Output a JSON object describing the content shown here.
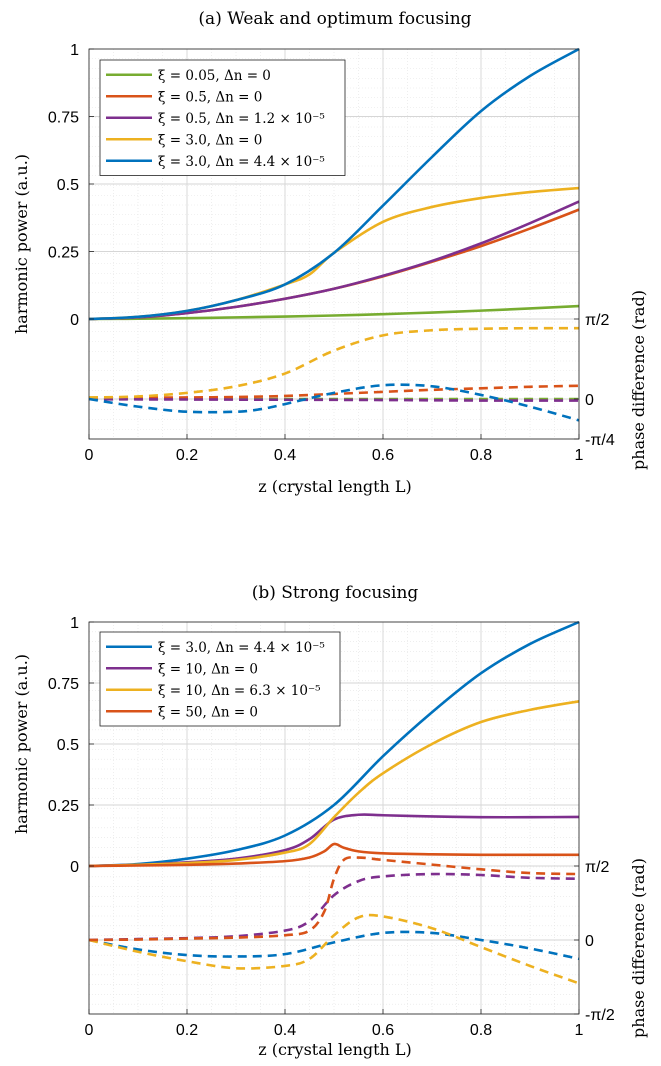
{
  "chart_data": [
    {
      "type": "line",
      "title": "(a) Weak and optimum focusing",
      "xlabel": "z (crystal length L)",
      "ylabel": "harmonic power (a.u.)",
      "ylabel_right": "phase difference (rad)",
      "xlim": [
        0,
        1
      ],
      "ylim": [
        0,
        1
      ],
      "x_ticks": [
        "0",
        "0.2",
        "0.4",
        "0.6",
        "0.8",
        "1"
      ],
      "y_ticks": [
        {
          "value": 0,
          "label": "0"
        },
        {
          "value": 0.25,
          "label": "0.25"
        },
        {
          "value": 0.5,
          "label": "0.5"
        },
        {
          "value": 0.75,
          "label": "0.75"
        },
        {
          "value": 1,
          "label": "1"
        }
      ],
      "phase_ylim": [
        -0.7854,
        1.5708
      ],
      "phase_ticks": [
        {
          "value": -0.7854,
          "label": "-π/4"
        },
        {
          "value": 0,
          "label": "0"
        },
        {
          "value": 1.5708,
          "label": "π/2"
        }
      ],
      "grid": true,
      "legend_position": "top-left",
      "power_series": [
        {
          "name": "ξ = 0.05, Δn = 0",
          "color": "#77ac30",
          "x": [
            0,
            0.1,
            0.2,
            0.3,
            0.4,
            0.5,
            0.6,
            0.7,
            0.8,
            0.9,
            1.0
          ],
          "values": [
            0,
            0.001,
            0.003,
            0.006,
            0.009,
            0.013,
            0.018,
            0.024,
            0.031,
            0.039,
            0.048
          ]
        },
        {
          "name": "ξ = 0.5, Δn = 0",
          "color": "#d95319",
          "x": [
            0,
            0.1,
            0.2,
            0.3,
            0.4,
            0.5,
            0.6,
            0.7,
            0.8,
            0.9,
            1.0
          ],
          "values": [
            0,
            0.006,
            0.022,
            0.045,
            0.075,
            0.112,
            0.158,
            0.212,
            0.27,
            0.335,
            0.405
          ]
        },
        {
          "name": "ξ = 0.5, Δn = 1.2 × 10⁻⁵",
          "color": "#7e2f8e",
          "x": [
            0,
            0.1,
            0.2,
            0.3,
            0.4,
            0.5,
            0.6,
            0.7,
            0.8,
            0.9,
            1.0
          ],
          "values": [
            0,
            0.006,
            0.022,
            0.045,
            0.075,
            0.112,
            0.16,
            0.215,
            0.28,
            0.355,
            0.435
          ]
        },
        {
          "name": "ξ = 3.0, Δn = 0",
          "color": "#edb120",
          "x": [
            0,
            0.1,
            0.2,
            0.3,
            0.4,
            0.45,
            0.5,
            0.6,
            0.7,
            0.8,
            0.9,
            1.0
          ],
          "values": [
            0,
            0.008,
            0.03,
            0.07,
            0.128,
            0.165,
            0.245,
            0.36,
            0.415,
            0.448,
            0.47,
            0.485
          ]
        },
        {
          "name": "ξ = 3.0, Δn = 4.4 × 10⁻⁵",
          "color": "#0072bd",
          "x": [
            0,
            0.1,
            0.2,
            0.3,
            0.4,
            0.5,
            0.6,
            0.7,
            0.8,
            0.9,
            1.0
          ],
          "values": [
            0,
            0.008,
            0.03,
            0.07,
            0.128,
            0.245,
            0.42,
            0.6,
            0.77,
            0.9,
            1.0
          ]
        }
      ],
      "phase_series": [
        {
          "color": "#77ac30",
          "x": [
            0,
            0.2,
            0.4,
            0.6,
            0.8,
            1.0
          ],
          "values": [
            0,
            0,
            0,
            0,
            0,
            0
          ]
        },
        {
          "color": "#d95319",
          "x": [
            0,
            0.1,
            0.2,
            0.3,
            0.4,
            0.5,
            0.6,
            0.7,
            0.8,
            0.9,
            1.0
          ],
          "values": [
            0.02,
            0.025,
            0.03,
            0.04,
            0.06,
            0.1,
            0.14,
            0.18,
            0.21,
            0.24,
            0.26
          ]
        },
        {
          "color": "#7e2f8e",
          "x": [
            0,
            0.2,
            0.4,
            0.6,
            0.8,
            1.0
          ],
          "values": [
            -0.005,
            -0.01,
            -0.015,
            -0.02,
            -0.03,
            -0.03
          ]
        },
        {
          "color": "#edb120",
          "x": [
            0,
            0.1,
            0.2,
            0.3,
            0.4,
            0.5,
            0.6,
            0.7,
            0.8,
            0.9,
            1.0
          ],
          "values": [
            0.03,
            0.05,
            0.12,
            0.25,
            0.5,
            0.95,
            1.25,
            1.35,
            1.38,
            1.39,
            1.39
          ]
        },
        {
          "color": "#0072bd",
          "x": [
            0,
            0.1,
            0.2,
            0.3,
            0.35,
            0.4,
            0.5,
            0.6,
            0.7,
            0.8,
            0.9,
            1.0
          ],
          "values": [
            0,
            -0.15,
            -0.25,
            -0.25,
            -0.2,
            -0.1,
            0.12,
            0.27,
            0.25,
            0.08,
            -0.15,
            -0.42
          ]
        }
      ]
    },
    {
      "type": "line",
      "title": "(b) Strong focusing",
      "xlabel": "z (crystal length L)",
      "ylabel": "harmonic power (a.u.)",
      "ylabel_right": "phase difference (rad)",
      "xlim": [
        0,
        1
      ],
      "ylim": [
        0,
        1
      ],
      "x_ticks": [
        "0",
        "0.2",
        "0.4",
        "0.6",
        "0.8",
        "1"
      ],
      "y_ticks": [
        {
          "value": 0,
          "label": "0"
        },
        {
          "value": 0.25,
          "label": "0.25"
        },
        {
          "value": 0.5,
          "label": "0.5"
        },
        {
          "value": 0.75,
          "label": "0.75"
        },
        {
          "value": 1,
          "label": "1"
        }
      ],
      "phase_ylim": [
        -1.5708,
        1.5708
      ],
      "phase_ticks": [
        {
          "value": -1.5708,
          "label": "-π/2"
        },
        {
          "value": 0,
          "label": "0"
        },
        {
          "value": 1.5708,
          "label": "π/2"
        }
      ],
      "grid": true,
      "legend_position": "top-left",
      "power_series": [
        {
          "name": "ξ = 3.0, Δn = 4.4 × 10⁻⁵",
          "color": "#0072bd",
          "x": [
            0,
            0.1,
            0.2,
            0.3,
            0.4,
            0.5,
            0.6,
            0.7,
            0.8,
            0.9,
            1.0
          ],
          "values": [
            0,
            0.008,
            0.03,
            0.065,
            0.125,
            0.25,
            0.45,
            0.63,
            0.79,
            0.91,
            1.0
          ]
        },
        {
          "name": "ξ = 10, Δn = 0",
          "color": "#7e2f8e",
          "x": [
            0,
            0.1,
            0.2,
            0.3,
            0.4,
            0.45,
            0.5,
            0.55,
            0.6,
            0.7,
            0.8,
            0.9,
            1.0
          ],
          "values": [
            0,
            0.005,
            0.015,
            0.03,
            0.065,
            0.11,
            0.19,
            0.21,
            0.208,
            0.203,
            0.2,
            0.2,
            0.201
          ]
        },
        {
          "name": "ξ = 10, Δn = 6.3 × 10⁻⁵",
          "color": "#edb120",
          "x": [
            0,
            0.1,
            0.2,
            0.3,
            0.4,
            0.45,
            0.5,
            0.55,
            0.6,
            0.7,
            0.8,
            0.9,
            1.0
          ],
          "values": [
            0,
            0.005,
            0.012,
            0.025,
            0.055,
            0.09,
            0.2,
            0.3,
            0.38,
            0.5,
            0.59,
            0.64,
            0.675
          ]
        },
        {
          "name": "ξ = 50, Δn = 0",
          "color": "#d95319",
          "x": [
            0,
            0.1,
            0.2,
            0.3,
            0.4,
            0.45,
            0.48,
            0.5,
            0.52,
            0.55,
            0.6,
            0.7,
            0.8,
            0.9,
            1.0
          ],
          "values": [
            0,
            0.002,
            0.005,
            0.01,
            0.02,
            0.035,
            0.06,
            0.09,
            0.075,
            0.06,
            0.052,
            0.048,
            0.046,
            0.046,
            0.046
          ]
        }
      ],
      "phase_series": [
        {
          "color": "#0072bd",
          "x": [
            0,
            0.1,
            0.2,
            0.3,
            0.4,
            0.5,
            0.6,
            0.7,
            0.8,
            0.9,
            1.0
          ],
          "values": [
            0,
            -0.2,
            -0.32,
            -0.35,
            -0.3,
            -0.05,
            0.15,
            0.15,
            0.0,
            -0.18,
            -0.4
          ]
        },
        {
          "color": "#7e2f8e",
          "x": [
            0,
            0.1,
            0.2,
            0.3,
            0.4,
            0.45,
            0.5,
            0.55,
            0.6,
            0.7,
            0.8,
            0.9,
            1.0
          ],
          "values": [
            0,
            0.02,
            0.04,
            0.08,
            0.2,
            0.4,
            0.95,
            1.25,
            1.35,
            1.4,
            1.38,
            1.32,
            1.3
          ]
        },
        {
          "color": "#edb120",
          "x": [
            0,
            0.1,
            0.2,
            0.3,
            0.4,
            0.45,
            0.5,
            0.55,
            0.6,
            0.7,
            0.8,
            0.9,
            1.0
          ],
          "values": [
            0,
            -0.25,
            -0.45,
            -0.6,
            -0.55,
            -0.4,
            0.1,
            0.48,
            0.5,
            0.25,
            -0.15,
            -0.55,
            -0.92
          ]
        },
        {
          "color": "#d95319",
          "x": [
            0,
            0.1,
            0.2,
            0.3,
            0.4,
            0.45,
            0.48,
            0.5,
            0.52,
            0.55,
            0.6,
            0.7,
            0.8,
            0.9,
            1.0
          ],
          "values": [
            0,
            0.01,
            0.03,
            0.05,
            0.1,
            0.2,
            0.6,
            1.3,
            1.7,
            1.75,
            1.7,
            1.6,
            1.5,
            1.42,
            1.4
          ]
        }
      ]
    }
  ]
}
